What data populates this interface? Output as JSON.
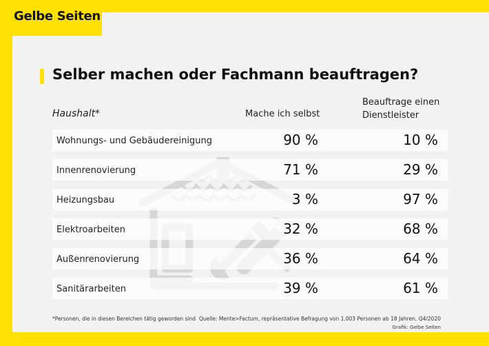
{
  "brand": {
    "logo_text": "Gelbe Seiten",
    "accent_color": "#ffe100",
    "card_color": "#f2f2f2"
  },
  "chart_data": {
    "type": "table",
    "title": "Selber machen oder Fachmann beauftragen?",
    "row_header": "Haushalt*",
    "columns": [
      "Mache ich selbst",
      "Beauftrage einen Dienstleister"
    ],
    "rows": [
      {
        "label": "Wohnungs- und Gebäudereinigung",
        "values": [
          "90 %",
          "10 %"
        ]
      },
      {
        "label": "Innenrenovierung",
        "values": [
          "71 %",
          "29 %"
        ]
      },
      {
        "label": "Heizungsbau",
        "values": [
          "3 %",
          "97 %"
        ]
      },
      {
        "label": "Elektroarbeiten",
        "values": [
          "32 %",
          "68 %"
        ]
      },
      {
        "label": "Außenrenovierung",
        "values": [
          "36 %",
          "64 %"
        ]
      },
      {
        "label": "Sanitärarbeiten",
        "values": [
          "39 %",
          "61 %"
        ]
      }
    ],
    "footnote": "*Personen, die in diesen Bereichen tätig geworden sind",
    "source": "Quelle: Mente>Factum, repräsentative Befragung von 1.003 Personen ab 18 Jahren, Q4/2020",
    "credit": "Grafik: Gelbe Seiten"
  },
  "icons": {
    "background": "house-tools-icon"
  }
}
